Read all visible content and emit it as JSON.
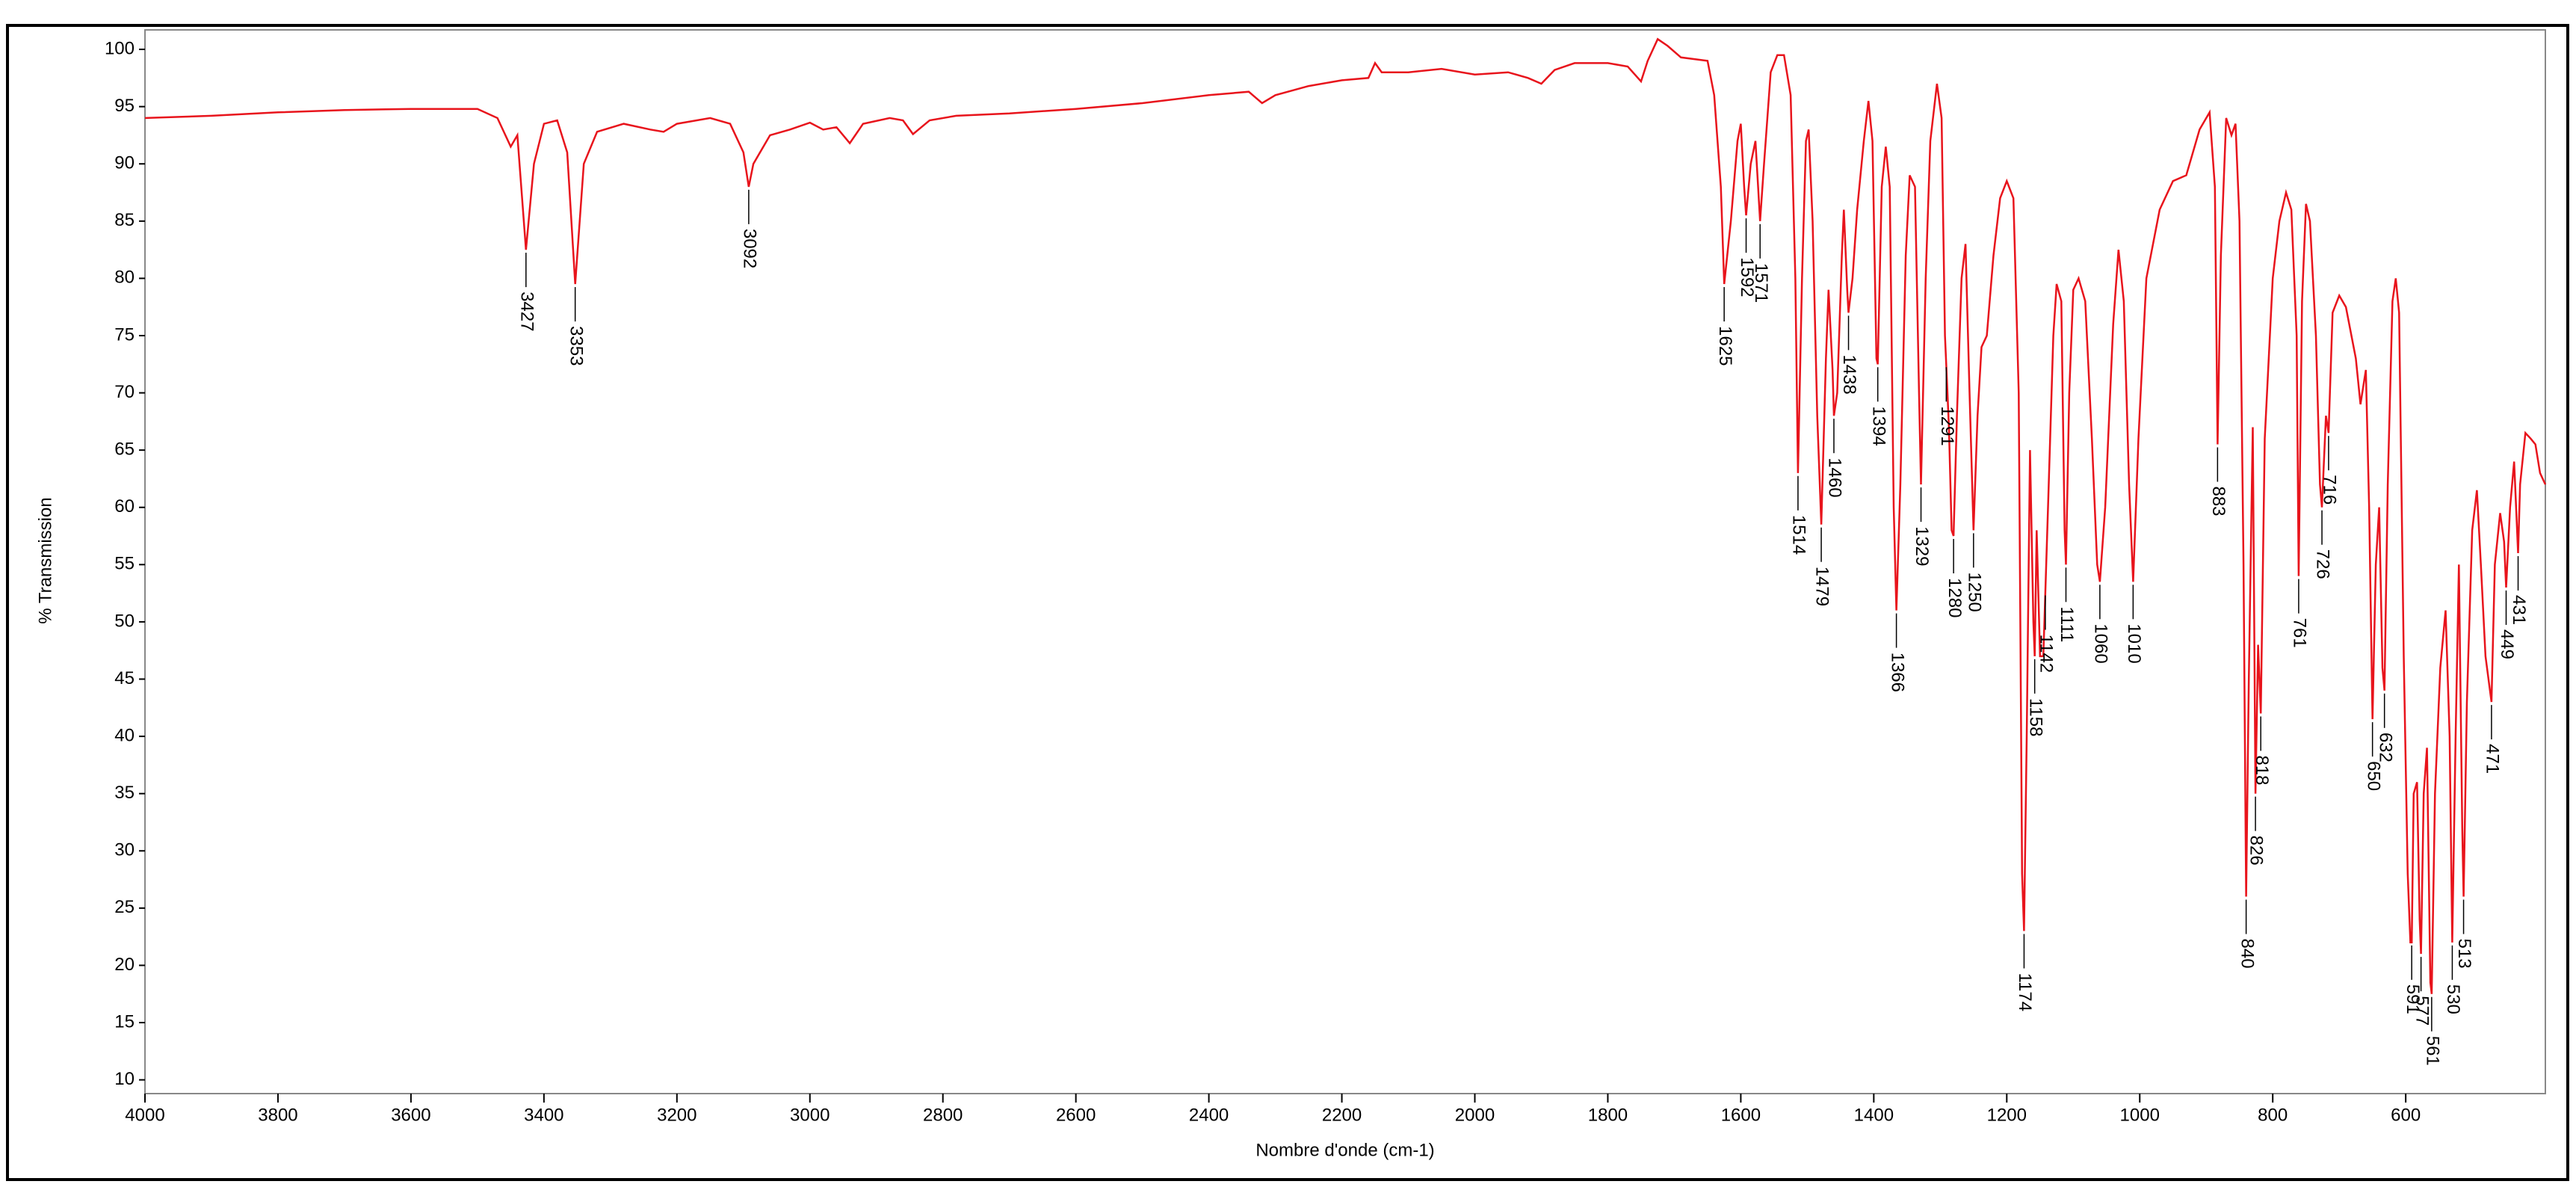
{
  "chart_data": {
    "type": "line",
    "xlabel": "Nombre d'onde (cm-1)",
    "ylabel": "% Transmission",
    "xlim": [
      4000,
      390
    ],
    "ylim": [
      8.8,
      101.7
    ],
    "xticks": [
      4000,
      3800,
      3600,
      3400,
      3200,
      3000,
      2800,
      2600,
      2400,
      2200,
      2000,
      1800,
      1600,
      1400,
      1200,
      1000,
      800,
      600
    ],
    "yticks": [
      10,
      15,
      20,
      25,
      30,
      35,
      40,
      45,
      50,
      55,
      60,
      65,
      70,
      75,
      80,
      85,
      90,
      95,
      100
    ],
    "series": [
      {
        "color": "#e8141c",
        "x": [
          4000,
          3900,
          3800,
          3700,
          3600,
          3500,
          3470,
          3450,
          3440,
          3427,
          3415,
          3400,
          3380,
          3365,
          3353,
          3340,
          3320,
          3280,
          3240,
          3220,
          3200,
          3150,
          3120,
          3100,
          3092,
          3085,
          3060,
          3030,
          3000,
          2980,
          2960,
          2940,
          2920,
          2880,
          2860,
          2845,
          2820,
          2780,
          2700,
          2600,
          2500,
          2400,
          2340,
          2320,
          2300,
          2250,
          2200,
          2160,
          2150,
          2140,
          2100,
          2050,
          2000,
          1950,
          1920,
          1900,
          1880,
          1850,
          1800,
          1770,
          1750,
          1740,
          1725,
          1710,
          1690,
          1650,
          1640,
          1630,
          1625,
          1615,
          1605,
          1600,
          1595,
          1592,
          1585,
          1578,
          1571,
          1565,
          1555,
          1545,
          1535,
          1525,
          1518,
          1514,
          1508,
          1502,
          1498,
          1492,
          1485,
          1479,
          1472,
          1468,
          1462,
          1460,
          1455,
          1448,
          1445,
          1440,
          1438,
          1432,
          1425,
          1415,
          1408,
          1402,
          1396,
          1394,
          1388,
          1382,
          1376,
          1370,
          1366,
          1360,
          1352,
          1346,
          1338,
          1332,
          1329,
          1322,
          1315,
          1305,
          1298,
          1293,
          1291,
          1287,
          1283,
          1280,
          1275,
          1268,
          1262,
          1256,
          1250,
          1244,
          1238,
          1230,
          1220,
          1210,
          1200,
          1190,
          1182,
          1177,
          1174,
          1170,
          1165,
          1160,
          1158,
          1155,
          1150,
          1145,
          1138,
          1130,
          1125,
          1118,
          1113,
          1111,
          1106,
          1100,
          1092,
          1082,
          1072,
          1064,
          1060,
          1052,
          1040,
          1032,
          1024,
          1016,
          1010,
          1002,
          990,
          970,
          950,
          930,
          910,
          895,
          887,
          883,
          878,
          870,
          862,
          856,
          850,
          844,
          840,
          836,
          830,
          826,
          822,
          818,
          812,
          800,
          790,
          780,
          772,
          764,
          761,
          756,
          750,
          744,
          735,
          729,
          726,
          720,
          716,
          710,
          700,
          690,
          675,
          668,
          660,
          655,
          650,
          645,
          640,
          635,
          632,
          627,
          620,
          615,
          610,
          603,
          597,
          593,
          591,
          588,
          583,
          579,
          577,
          573,
          568,
          563,
          561,
          556,
          548,
          540,
          534,
          530,
          525,
          520,
          515,
          513,
          508,
          500,
          493,
          487,
          480,
          471,
          466,
          458,
          452,
          449,
          443,
          437,
          431,
          428,
          420,
          412,
          405,
          398,
          390
        ],
        "values": [
          94,
          94.2,
          94.5,
          94.7,
          94.8,
          94.8,
          94,
          91.5,
          92.5,
          82.5,
          90,
          93.5,
          93.8,
          91,
          79.5,
          90,
          92.8,
          93.5,
          93,
          92.8,
          93.5,
          94,
          93.5,
          91,
          88,
          90,
          92.5,
          93,
          93.6,
          93,
          93.2,
          91.8,
          93.5,
          94,
          93.8,
          92.6,
          93.8,
          94.2,
          94.4,
          94.8,
          95.3,
          96,
          96.3,
          95.3,
          96,
          96.8,
          97.3,
          97.5,
          98.8,
          98,
          98,
          98.3,
          97.8,
          98,
          97.5,
          97,
          98.2,
          98.8,
          98.8,
          98.5,
          97.2,
          99,
          100.9,
          100.3,
          99.3,
          99,
          96,
          88,
          79.5,
          85,
          92,
          93.5,
          88,
          85.5,
          90,
          92,
          85,
          90,
          98,
          99.5,
          99.5,
          96,
          80,
          63,
          80,
          92,
          93,
          85,
          68,
          58.5,
          73,
          79,
          72,
          68,
          70,
          82,
          86,
          79,
          77,
          80,
          86,
          92,
          95.5,
          92,
          73,
          72.5,
          88,
          91.5,
          88,
          60,
          51,
          62,
          82,
          89,
          88,
          70,
          62,
          80,
          92,
          97,
          94,
          75,
          72.5,
          67,
          58,
          57.5,
          68,
          80,
          83,
          70,
          58,
          68,
          74,
          75,
          82,
          87,
          88.5,
          87,
          70,
          28,
          23,
          40,
          65,
          50,
          47,
          58,
          47,
          47,
          60,
          75,
          79.5,
          78,
          58,
          55,
          70,
          79,
          80,
          78,
          66,
          55,
          53.5,
          60,
          76,
          82.5,
          78,
          62,
          53.5,
          66,
          80,
          86,
          88.5,
          89,
          93,
          94.5,
          88,
          65.5,
          82,
          94,
          92.5,
          93.5,
          85,
          55,
          26,
          45,
          67,
          35,
          48,
          42,
          66,
          80,
          85,
          87.5,
          86,
          75,
          54,
          78,
          86.5,
          85,
          75,
          62,
          60,
          68,
          66.5,
          77,
          78.5,
          77.5,
          73,
          69,
          72,
          60,
          41.5,
          55,
          60,
          46,
          44,
          62,
          78,
          80,
          77,
          47,
          28,
          22,
          22,
          35,
          36,
          24,
          21,
          35,
          39,
          18.5,
          17.5,
          35,
          46,
          51,
          40,
          22,
          40,
          55,
          32,
          26,
          43,
          58,
          61.5,
          55,
          47,
          43,
          55,
          59.5,
          57,
          53,
          60,
          64,
          56,
          62,
          66.5,
          66,
          65.5,
          63,
          62
        ]
      }
    ],
    "peaks": [
      3427,
      3353,
      3092,
      1625,
      1592,
      1571,
      1514,
      1479,
      1460,
      1438,
      1394,
      1366,
      1329,
      1291,
      1280,
      1250,
      1174,
      1158,
      1142,
      1111,
      1060,
      1010,
      883,
      840,
      826,
      818,
      761,
      726,
      716,
      650,
      632,
      591,
      577,
      561,
      530,
      513,
      471,
      449,
      431
    ]
  }
}
